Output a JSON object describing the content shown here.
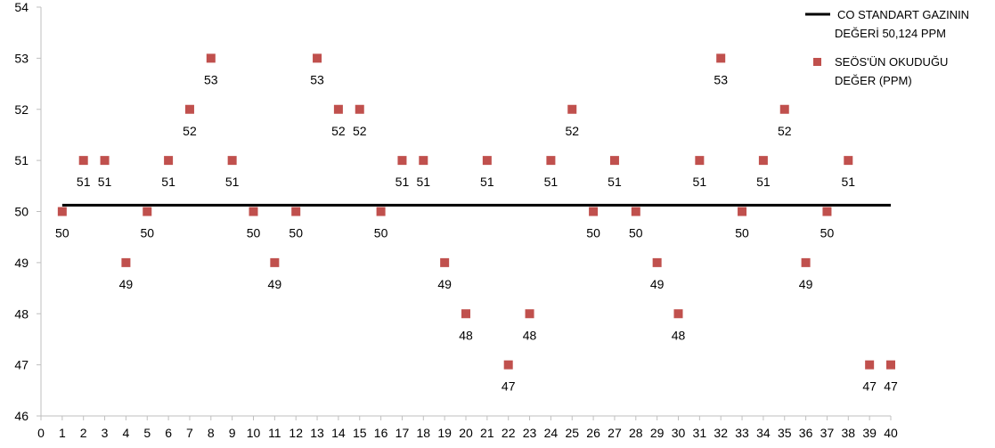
{
  "chart_data": {
    "type": "scatter",
    "title": "",
    "xlabel": "",
    "ylabel": "",
    "xlim": [
      0,
      40
    ],
    "ylim": [
      46,
      54
    ],
    "x_ticks": [
      0,
      1,
      2,
      3,
      4,
      5,
      6,
      7,
      8,
      9,
      10,
      11,
      12,
      13,
      14,
      15,
      16,
      17,
      18,
      19,
      20,
      21,
      22,
      23,
      24,
      25,
      26,
      27,
      28,
      29,
      30,
      31,
      32,
      33,
      34,
      35,
      36,
      37,
      38,
      39,
      40
    ],
    "y_ticks": [
      46,
      47,
      48,
      49,
      50,
      51,
      52,
      53,
      54
    ],
    "grid": false,
    "legend_position": "top-right",
    "series": [
      {
        "name": "SEÖS'ÜN OKUDUĞU DEĞER (PPM)",
        "legend_lines": [
          "SEÖS'ÜN OKUDUĞU",
          "DEĞER (PPM)"
        ],
        "kind": "scatter",
        "marker": "square",
        "color": "#C0504D",
        "x": [
          1,
          2,
          3,
          4,
          5,
          6,
          7,
          8,
          9,
          10,
          11,
          12,
          13,
          14,
          15,
          16,
          17,
          18,
          19,
          20,
          21,
          22,
          23,
          24,
          25,
          26,
          27,
          28,
          29,
          30,
          31,
          32,
          33,
          34,
          35,
          36,
          37,
          38,
          39,
          40
        ],
        "y": [
          50,
          51,
          51,
          49,
          50,
          51,
          52,
          53,
          51,
          50,
          49,
          50,
          53,
          52,
          52,
          50,
          51,
          51,
          49,
          48,
          51,
          47,
          48,
          51,
          52,
          50,
          51,
          50,
          49,
          48,
          51,
          53,
          50,
          51,
          52,
          49,
          50,
          51,
          47,
          47
        ],
        "data_labels": [
          "50",
          "51",
          "51",
          "49",
          "50",
          "51",
          "52",
          "53",
          "51",
          "50",
          "49",
          "50",
          "53",
          "52",
          "52",
          "50",
          "51",
          "51",
          "49",
          "48",
          "51",
          "47",
          "48",
          "51",
          "52",
          "50",
          "51",
          "50",
          "49",
          "48",
          "51",
          "53",
          "50",
          "51",
          "52",
          "49",
          "50",
          "51",
          "47",
          "47"
        ]
      },
      {
        "name": "CO STANDART GAZININ DEĞERİ 50,124 PPM",
        "legend_lines": [
          "CO STANDART GAZININ",
          "DEĞERİ 50,124 PPM"
        ],
        "kind": "line",
        "color": "#000000",
        "x": [
          1,
          40
        ],
        "y": [
          50.124,
          50.124
        ]
      }
    ]
  }
}
